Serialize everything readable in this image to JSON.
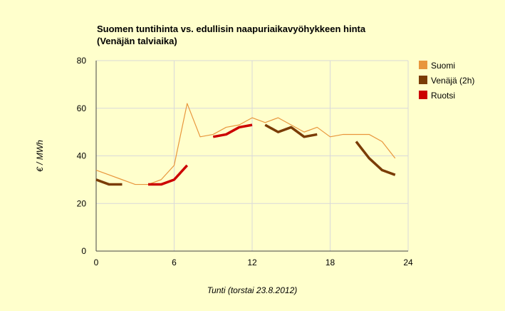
{
  "chart_data": {
    "type": "line",
    "title": [
      "Suomen tuntihinta vs. edullisin naapuriaikavyöhykkeen hinta",
      "(Venäjän talviaika)"
    ],
    "xlabel": "Tunti (torstai 23.8.2012)",
    "ylabel": "€ / MWh",
    "xlim": [
      0,
      24
    ],
    "ylim": [
      0,
      80
    ],
    "xticks": [
      0,
      6,
      12,
      18,
      24
    ],
    "yticks": [
      0,
      20,
      40,
      60,
      80
    ],
    "grid": true,
    "legend_position": "right",
    "series": [
      {
        "name": "Suomi",
        "color": "#e8963c",
        "points": [
          [
            0,
            34
          ],
          [
            1,
            32
          ],
          [
            2,
            30
          ],
          [
            3,
            28
          ],
          [
            4,
            28
          ],
          [
            5,
            30
          ],
          [
            6,
            36
          ],
          [
            7,
            62
          ],
          [
            8,
            48
          ],
          [
            9,
            49
          ],
          [
            10,
            52
          ],
          [
            11,
            53
          ],
          [
            12,
            56
          ],
          [
            13,
            54
          ],
          [
            14,
            56
          ],
          [
            15,
            53
          ],
          [
            16,
            50
          ],
          [
            17,
            52
          ],
          [
            18,
            48
          ],
          [
            19,
            49
          ],
          [
            20,
            49
          ],
          [
            21,
            49
          ],
          [
            22,
            46
          ],
          [
            23,
            39
          ]
        ]
      },
      {
        "name": "Venäjä (2h)",
        "color": "#7a3c05",
        "segments": [
          [
            [
              0,
              30
            ],
            [
              1,
              28
            ],
            [
              2,
              28
            ]
          ],
          [
            [
              13,
              53
            ],
            [
              14,
              50
            ],
            [
              15,
              52
            ],
            [
              16,
              48
            ],
            [
              17,
              49
            ]
          ],
          [
            [
              20,
              46
            ],
            [
              21,
              39
            ],
            [
              22,
              34
            ],
            [
              23,
              32
            ]
          ]
        ]
      },
      {
        "name": "Ruotsi",
        "color": "#cc0000",
        "segments": [
          [
            [
              4,
              28
            ],
            [
              5,
              28
            ],
            [
              6,
              30
            ],
            [
              7,
              36
            ]
          ],
          [
            [
              9,
              48
            ],
            [
              10,
              49
            ],
            [
              11,
              52
            ],
            [
              12,
              53
            ]
          ]
        ]
      }
    ]
  }
}
